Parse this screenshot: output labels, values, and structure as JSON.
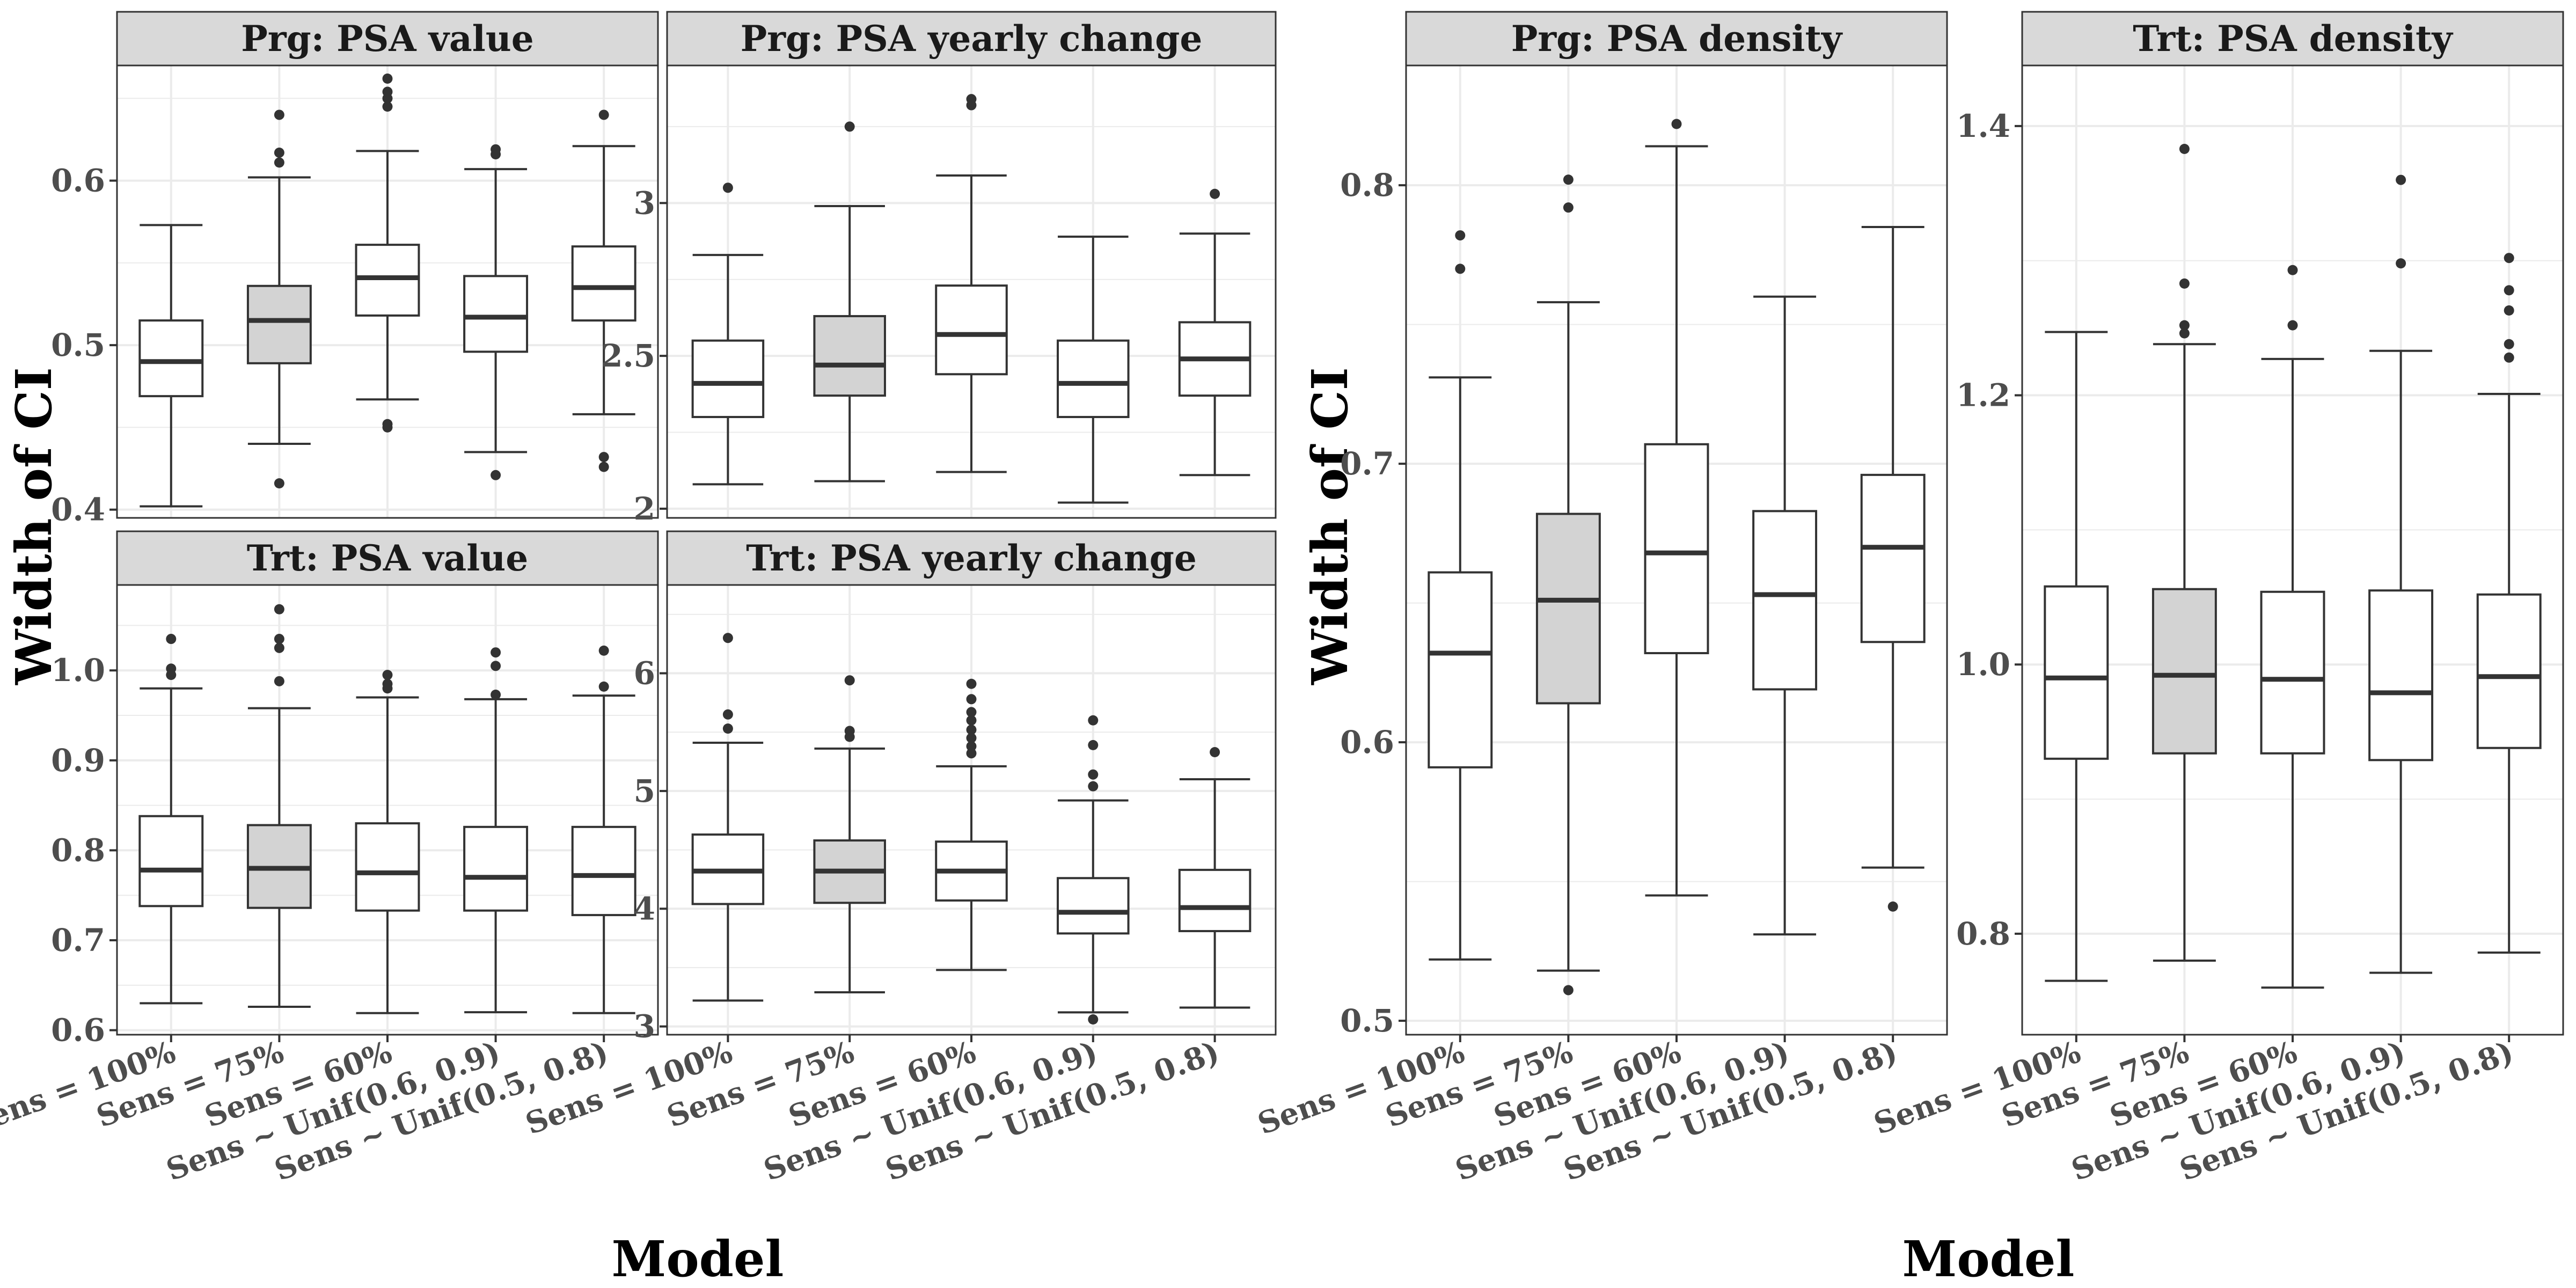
{
  "chart_data": [
    {
      "type": "boxplot",
      "title": "Prg: PSA value",
      "panel_group": "left",
      "xlabel": "Model",
      "ylabel": "Width of CI",
      "ylim": [
        0.395,
        0.67
      ],
      "yticks": [
        0.4,
        0.5,
        0.6
      ],
      "categories": [
        "Sens = 100%",
        "Sens = 75%",
        "Sens = 60%",
        "Sens ~ Unif(0.6, 0.9)",
        "Sens ~ Unif(0.5, 0.8)"
      ],
      "highlighted_category": "Sens = 75%",
      "boxes": [
        {
          "whisker_low": 0.402,
          "q1": 0.469,
          "median": 0.49,
          "q3": 0.515,
          "whisker_high": 0.573,
          "outliers": []
        },
        {
          "whisker_low": 0.44,
          "q1": 0.489,
          "median": 0.515,
          "q3": 0.536,
          "whisker_high": 0.602,
          "outliers": [
            0.416,
            0.611,
            0.617,
            0.64
          ]
        },
        {
          "whisker_low": 0.467,
          "q1": 0.518,
          "median": 0.541,
          "q3": 0.561,
          "whisker_high": 0.618,
          "outliers": [
            0.45,
            0.452,
            0.645,
            0.65,
            0.654,
            0.662
          ]
        },
        {
          "whisker_low": 0.435,
          "q1": 0.496,
          "median": 0.517,
          "q3": 0.542,
          "whisker_high": 0.607,
          "outliers": [
            0.421,
            0.616,
            0.619
          ]
        },
        {
          "whisker_low": 0.458,
          "q1": 0.515,
          "median": 0.535,
          "q3": 0.56,
          "whisker_high": 0.621,
          "outliers": [
            0.426,
            0.432,
            0.64
          ]
        }
      ]
    },
    {
      "type": "boxplot",
      "title": "Prg: PSA yearly change",
      "panel_group": "left",
      "xlabel": "Model",
      "ylabel": "Width of CI",
      "ylim": [
        1.97,
        3.45
      ],
      "yticks": [
        2.0,
        2.5,
        3.0
      ],
      "categories": [
        "Sens = 100%",
        "Sens = 75%",
        "Sens = 60%",
        "Sens ~ Unif(0.6, 0.9)",
        "Sens ~ Unif(0.5, 0.8)"
      ],
      "highlighted_category": "Sens = 75%",
      "boxes": [
        {
          "whisker_low": 2.08,
          "q1": 2.3,
          "median": 2.41,
          "q3": 2.55,
          "whisker_high": 2.83,
          "outliers": [
            3.05
          ]
        },
        {
          "whisker_low": 2.09,
          "q1": 2.37,
          "median": 2.47,
          "q3": 2.63,
          "whisker_high": 2.99,
          "outliers": [
            3.25
          ]
        },
        {
          "whisker_low": 2.12,
          "q1": 2.44,
          "median": 2.57,
          "q3": 2.73,
          "whisker_high": 3.09,
          "outliers": [
            3.32,
            3.34
          ]
        },
        {
          "whisker_low": 2.02,
          "q1": 2.3,
          "median": 2.41,
          "q3": 2.55,
          "whisker_high": 2.89,
          "outliers": []
        },
        {
          "whisker_low": 2.11,
          "q1": 2.37,
          "median": 2.49,
          "q3": 2.61,
          "whisker_high": 2.9,
          "outliers": [
            3.03
          ]
        }
      ]
    },
    {
      "type": "boxplot",
      "title": "Trt: PSA value",
      "panel_group": "left",
      "xlabel": "Model",
      "ylabel": "Width of CI",
      "ylim": [
        0.595,
        1.095
      ],
      "yticks": [
        0.6,
        0.7,
        0.8,
        0.9,
        1.0
      ],
      "tick_labels": [
        "0.6",
        "0.7",
        "0.8",
        "0.9",
        "1.0"
      ],
      "categories": [
        "Sens = 100%",
        "Sens = 75%",
        "Sens = 60%",
        "Sens ~ Unif(0.6, 0.9)",
        "Sens ~ Unif(0.5, 0.8)"
      ],
      "highlighted_category": "Sens = 75%",
      "boxes": [
        {
          "whisker_low": 0.63,
          "q1": 0.738,
          "median": 0.778,
          "q3": 0.838,
          "whisker_high": 0.98,
          "outliers": [
            0.995,
            1.002,
            1.035
          ]
        },
        {
          "whisker_low": 0.626,
          "q1": 0.736,
          "median": 0.78,
          "q3": 0.828,
          "whisker_high": 0.958,
          "outliers": [
            0.988,
            1.025,
            1.035,
            1.068
          ]
        },
        {
          "whisker_low": 0.619,
          "q1": 0.733,
          "median": 0.775,
          "q3": 0.83,
          "whisker_high": 0.97,
          "outliers": [
            0.98,
            0.985,
            0.995
          ]
        },
        {
          "whisker_low": 0.62,
          "q1": 0.733,
          "median": 0.77,
          "q3": 0.826,
          "whisker_high": 0.968,
          "outliers": [
            0.973,
            1.005,
            1.02
          ]
        },
        {
          "whisker_low": 0.619,
          "q1": 0.728,
          "median": 0.772,
          "q3": 0.826,
          "whisker_high": 0.972,
          "outliers": [
            0.982,
            1.022
          ]
        }
      ]
    },
    {
      "type": "boxplot",
      "title": "Trt: PSA yearly change",
      "panel_group": "left",
      "xlabel": "Model",
      "ylabel": "Width of CI",
      "ylim": [
        2.93,
        6.75
      ],
      "yticks": [
        3,
        4,
        5,
        6
      ],
      "categories": [
        "Sens = 100%",
        "Sens = 75%",
        "Sens = 60%",
        "Sens ~ Unif(0.6, 0.9)",
        "Sens ~ Unif(0.5, 0.8)"
      ],
      "highlighted_category": "Sens = 75%",
      "boxes": [
        {
          "whisker_low": 3.22,
          "q1": 4.04,
          "median": 4.32,
          "q3": 4.63,
          "whisker_high": 5.41,
          "outliers": [
            5.53,
            5.65,
            6.3
          ]
        },
        {
          "whisker_low": 3.29,
          "q1": 4.05,
          "median": 4.32,
          "q3": 4.58,
          "whisker_high": 5.36,
          "outliers": [
            5.46,
            5.51,
            5.94
          ]
        },
        {
          "whisker_low": 3.48,
          "q1": 4.07,
          "median": 4.32,
          "q3": 4.57,
          "whisker_high": 5.21,
          "outliers": [
            5.32,
            5.38,
            5.45,
            5.52,
            5.6,
            5.67,
            5.78,
            5.91
          ]
        },
        {
          "whisker_low": 3.12,
          "q1": 3.79,
          "median": 3.97,
          "q3": 4.26,
          "whisker_high": 4.92,
          "outliers": [
            3.06,
            5.04,
            5.14,
            5.39,
            5.6
          ]
        },
        {
          "whisker_low": 3.16,
          "q1": 3.81,
          "median": 4.01,
          "q3": 4.33,
          "whisker_high": 5.1,
          "outliers": [
            5.33
          ]
        }
      ]
    },
    {
      "type": "boxplot",
      "title": "Prg: PSA density",
      "panel_group": "middle",
      "xlabel": "Model",
      "ylabel": "Width of CI",
      "ylim": [
        0.495,
        0.843
      ],
      "yticks": [
        0.5,
        0.6,
        0.7,
        0.8
      ],
      "categories": [
        "Sens = 100%",
        "Sens = 75%",
        "Sens = 60%",
        "Sens ~ Unif(0.6, 0.9)",
        "Sens ~ Unif(0.5, 0.8)"
      ],
      "highlighted_category": "Sens = 75%",
      "boxes": [
        {
          "whisker_low": 0.522,
          "q1": 0.591,
          "median": 0.632,
          "q3": 0.661,
          "whisker_high": 0.731,
          "outliers": [
            0.77,
            0.782
          ]
        },
        {
          "whisker_low": 0.518,
          "q1": 0.614,
          "median": 0.651,
          "q3": 0.682,
          "whisker_high": 0.758,
          "outliers": [
            0.511,
            0.792,
            0.802
          ]
        },
        {
          "whisker_low": 0.545,
          "q1": 0.632,
          "median": 0.668,
          "q3": 0.707,
          "whisker_high": 0.814,
          "outliers": [
            0.822
          ]
        },
        {
          "whisker_low": 0.531,
          "q1": 0.619,
          "median": 0.653,
          "q3": 0.683,
          "whisker_high": 0.76,
          "outliers": []
        },
        {
          "whisker_low": 0.555,
          "q1": 0.636,
          "median": 0.67,
          "q3": 0.696,
          "whisker_high": 0.785,
          "outliers": [
            0.541
          ]
        }
      ]
    },
    {
      "type": "boxplot",
      "title": "Trt: PSA density",
      "panel_group": "right",
      "xlabel": "Model",
      "ylabel": "Width of CI",
      "ylim": [
        0.725,
        1.445
      ],
      "yticks": [
        0.8,
        1.0,
        1.2,
        1.4
      ],
      "tick_labels": [
        "0.8",
        "1.0",
        "1.2",
        "1.4"
      ],
      "categories": [
        "Sens = 100%",
        "Sens = 75%",
        "Sens = 60%",
        "Sens ~ Unif(0.6, 0.9)",
        "Sens ~ Unif(0.5, 0.8)"
      ],
      "highlighted_category": "Sens = 75%",
      "boxes": [
        {
          "whisker_low": 0.765,
          "q1": 0.93,
          "median": 0.99,
          "q3": 1.058,
          "whisker_high": 1.247,
          "outliers": []
        },
        {
          "whisker_low": 0.78,
          "q1": 0.934,
          "median": 0.992,
          "q3": 1.056,
          "whisker_high": 1.238,
          "outliers": [
            1.246,
            1.252,
            1.283,
            1.383
          ]
        },
        {
          "whisker_low": 0.76,
          "q1": 0.934,
          "median": 0.989,
          "q3": 1.054,
          "whisker_high": 1.227,
          "outliers": [
            1.252,
            1.293
          ]
        },
        {
          "whisker_low": 0.771,
          "q1": 0.929,
          "median": 0.979,
          "q3": 1.055,
          "whisker_high": 1.233,
          "outliers": [
            1.298,
            1.36
          ]
        },
        {
          "whisker_low": 0.786,
          "q1": 0.938,
          "median": 0.991,
          "q3": 1.052,
          "whisker_high": 1.201,
          "outliers": [
            1.228,
            1.238,
            1.263,
            1.278,
            1.302
          ]
        }
      ]
    }
  ],
  "axis_titles": {
    "left_y": "Width of CI",
    "left_x": "Model",
    "right_y": "Width of CI",
    "right_x": "Model"
  },
  "colors": {
    "box_fill": "#ffffff",
    "highlight_fill": "#d3d3d3",
    "strip_fill": "#d9d9d9",
    "border": "#333333",
    "grid": "#ebebeb",
    "tick_text": "#4d4d4d"
  }
}
